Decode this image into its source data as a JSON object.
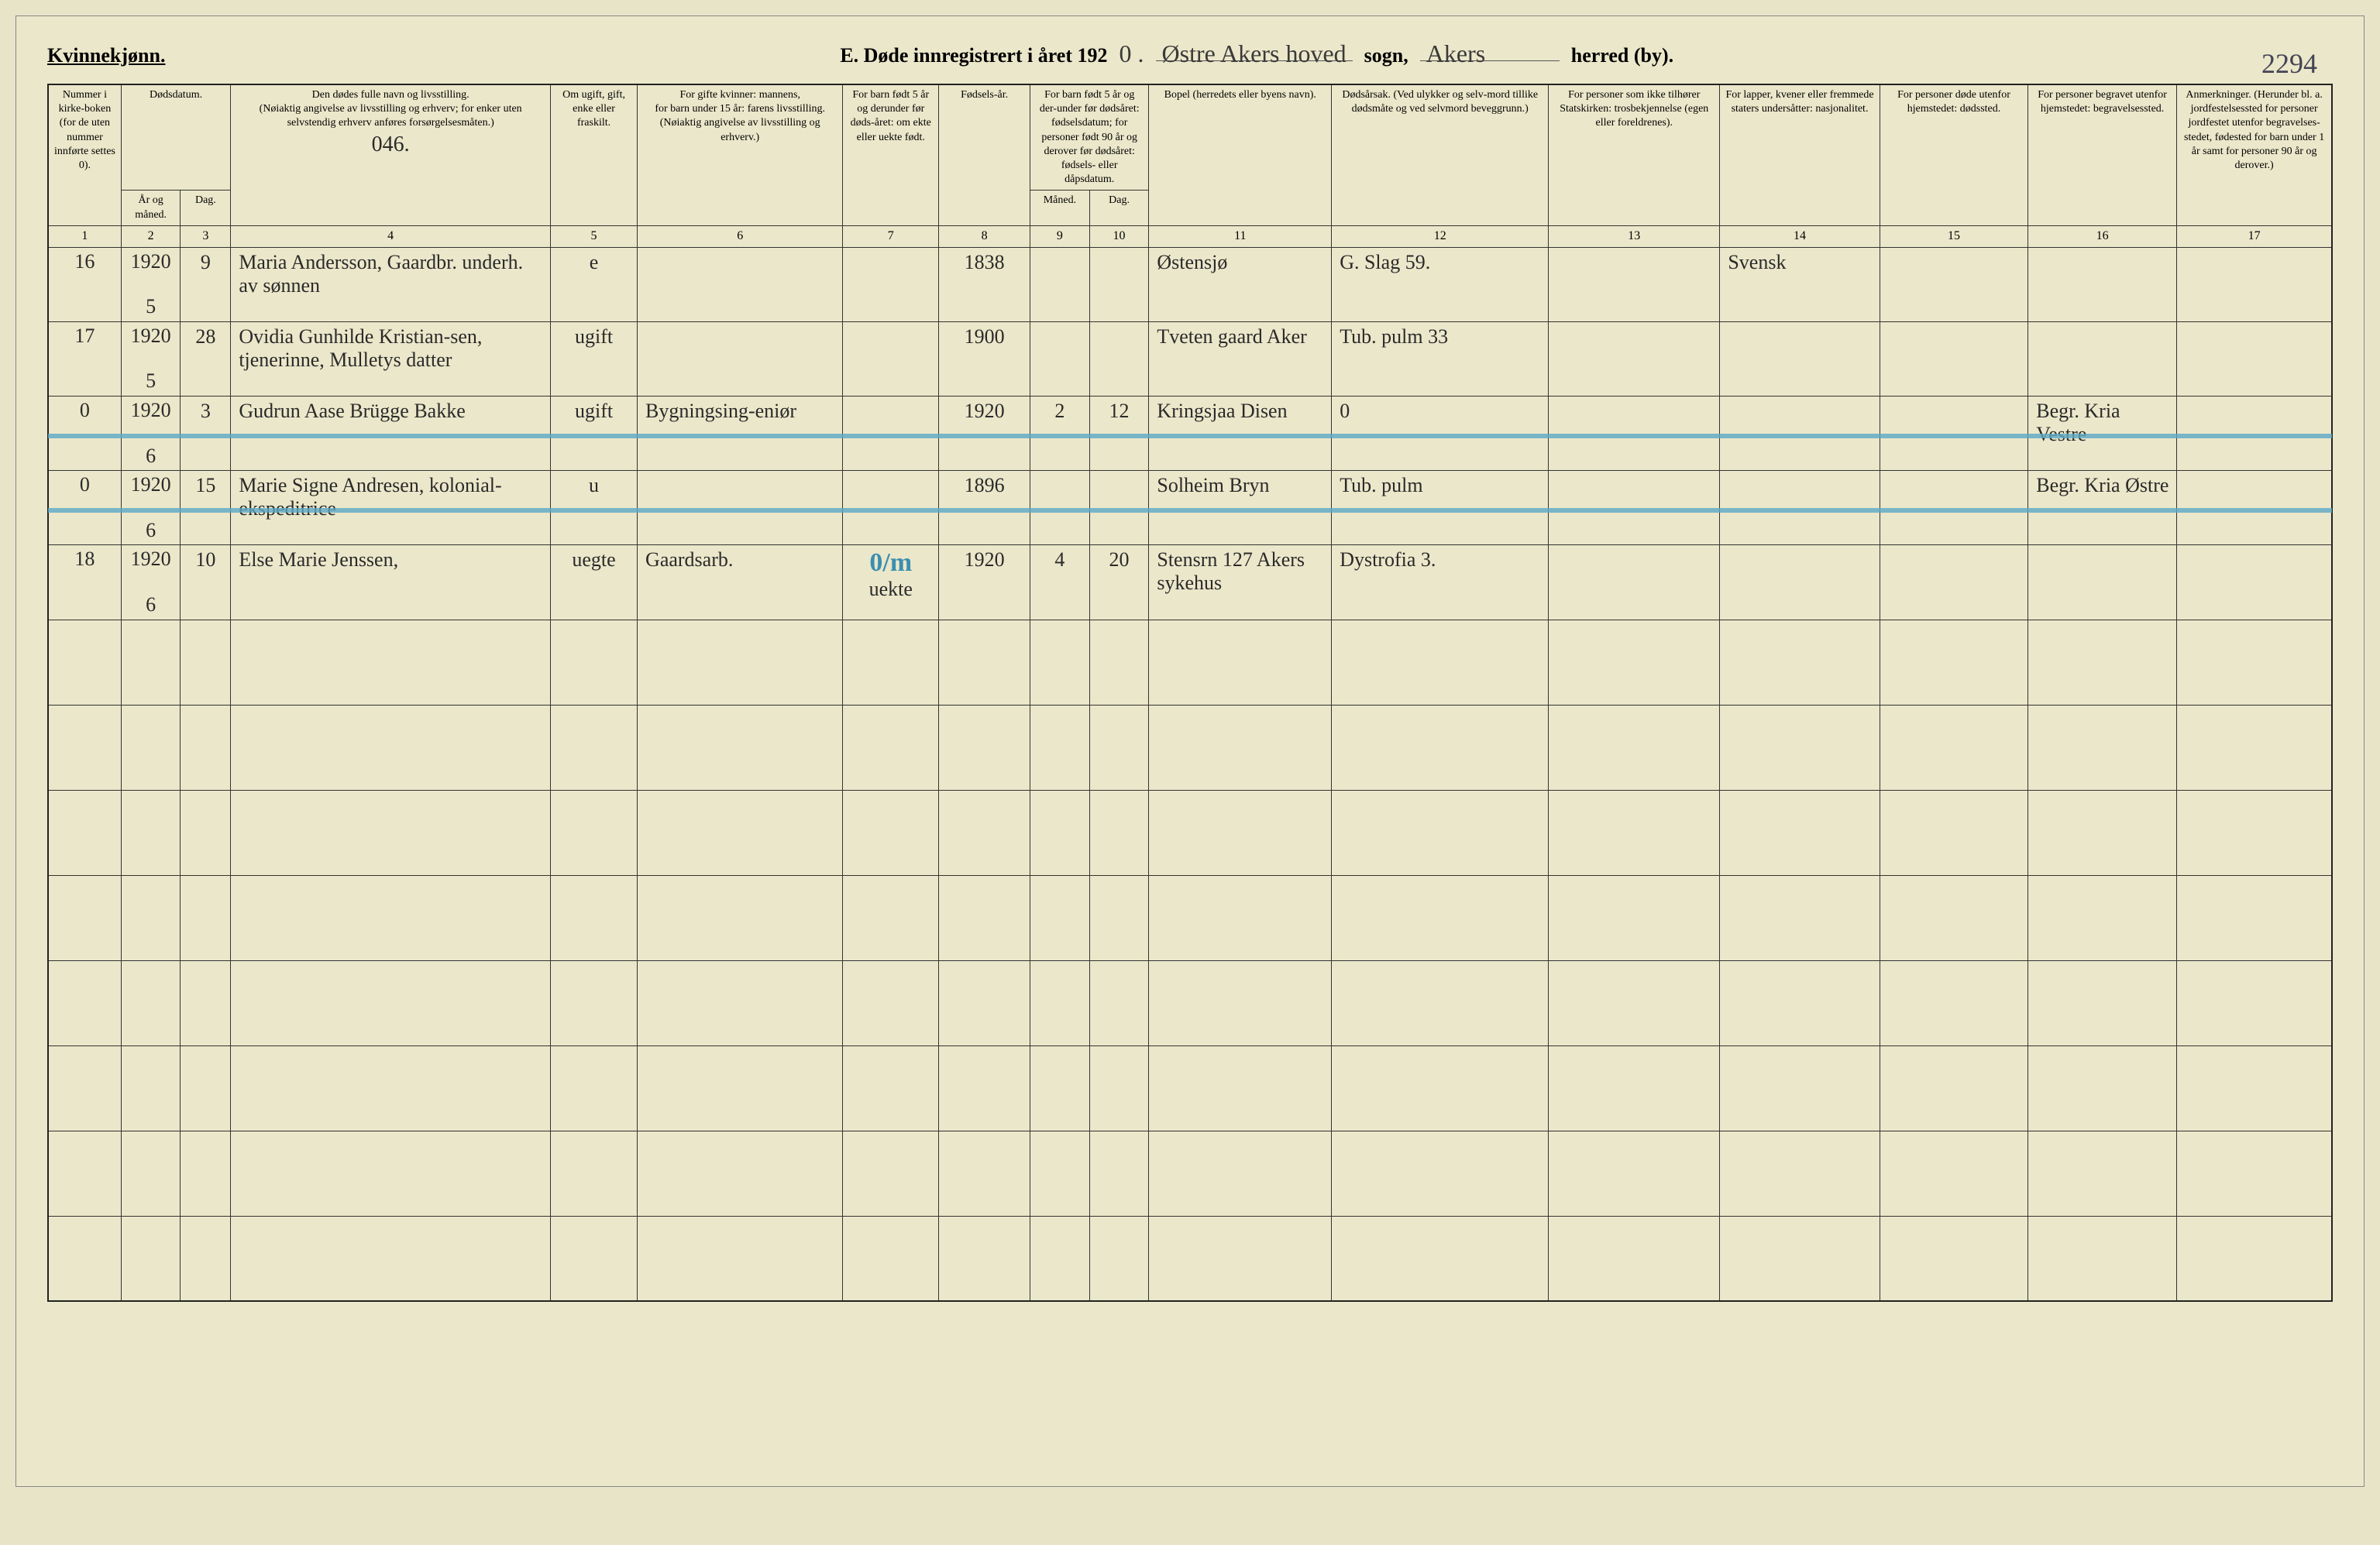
{
  "header": {
    "gender_label": "Kvinnekjønn.",
    "title_prefix": "E.  Døde innregistrert i året 192",
    "year_suffix": "0 .",
    "parish_handwriting": "Østre   Akers   hoved",
    "sogn_label": "sogn,",
    "herred_handwriting": "Akers",
    "herred_label": "herred (by).",
    "page_number": "2294"
  },
  "columns": {
    "c1": "Nummer i kirke-boken (for de uten nummer innførte settes 0).",
    "c2_3": "Dødsdatum.",
    "c2": "År og måned.",
    "c3": "Dag.",
    "c4_top": "Den dødes fulle navn og livsstilling.",
    "c4_mid": "(Nøiaktig angivelse av livsstilling og erhverv; for enker uten selvstendig erhverv anføres forsørgelsesmåten.)",
    "c4_hand": "046.",
    "c5": "Om ugift, gift, enke eller fraskilt.",
    "c6_top": "For gifte kvinner: mannens,",
    "c6_mid": "for barn under 15 år: farens livsstilling.",
    "c6_bot": "(Nøiaktig angivelse av livsstilling og erhverv.)",
    "c7": "For barn født 5 år og derunder før døds-året: om ekte eller uekte født.",
    "c8": "Fødsels-år.",
    "c9_10_top": "For barn født 5 år og der-under før dødsåret: fødselsdatum; for personer født 90 år og derover før dødsåret: fødsels- eller dåpsdatum.",
    "c9": "Måned.",
    "c10": "Dag.",
    "c11": "Bopel (herredets eller byens navn).",
    "c12": "Dødsårsak. (Ved ulykker og selv-mord tillike dødsmåte og ved selvmord beveggrunn.)",
    "c13": "For personer som ikke tilhører Statskirken: trosbekjennelse (egen eller foreldrenes).",
    "c14": "For lapper, kvener eller fremmede staters undersåtter: nasjonalitet.",
    "c15": "For personer døde utenfor hjemstedet: dødssted.",
    "c16": "For personer begravet utenfor hjemstedet: begravelsessted.",
    "c17": "Anmerkninger. (Herunder bl. a. jordfestelsessted for personer jordfestet utenfor begravelses-stedet, fødested for barn under 1 år samt for personer 90 år og derover.)"
  },
  "col_numbers": [
    "1",
    "2",
    "3",
    "4",
    "5",
    "6",
    "7",
    "8",
    "9",
    "10",
    "11",
    "12",
    "13",
    "14",
    "15",
    "16",
    "17"
  ],
  "rows": [
    {
      "num": "16",
      "year": "1920",
      "month": "5",
      "day": "9",
      "name": "Maria Andersson, Gaardbr. underh. av sønnen",
      "status": "e",
      "spouse": "",
      "ekte": "",
      "birth_year": "1838",
      "b_month": "",
      "b_day": "",
      "residence": "Østensjø",
      "cause": "G. Slag 59.",
      "religion": "",
      "nationality": "Svensk",
      "death_place": "",
      "burial_place": "",
      "remarks": "",
      "struck": false
    },
    {
      "num": "17",
      "year": "1920",
      "month": "5",
      "day": "28",
      "name": "Ovidia Gunhilde Kristian-sen, tjenerinne, Mulletys datter",
      "status": "ugift",
      "spouse": "",
      "ekte": "",
      "birth_year": "1900",
      "b_month": "",
      "b_day": "",
      "residence": "Tveten gaard Aker",
      "cause": "Tub. pulm 33",
      "religion": "",
      "nationality": "",
      "death_place": "",
      "burial_place": "",
      "remarks": "",
      "struck": false
    },
    {
      "num": "0",
      "year": "1920",
      "month": "6",
      "day": "3",
      "name": "Gudrun Aase Brügge Bakke",
      "status": "ugift",
      "spouse": "Bygningsing-eniør",
      "ekte": "",
      "birth_year": "1920",
      "b_month": "2",
      "b_day": "12",
      "residence": "Kringsjaa Disen",
      "cause": "0",
      "religion": "",
      "nationality": "",
      "death_place": "",
      "burial_place": "Begr. Kria Vestre",
      "remarks": "",
      "struck": true
    },
    {
      "num": "0",
      "year": "1920",
      "month": "6",
      "day": "15",
      "name": "Marie Signe Andresen, kolonial-ekspeditrice",
      "status": "u",
      "spouse": "",
      "ekte": "",
      "birth_year": "1896",
      "b_month": "",
      "b_day": "",
      "residence": "Solheim Bryn",
      "cause": "Tub. pulm",
      "religion": "",
      "nationality": "",
      "death_place": "",
      "burial_place": "Begr. Kria Østre",
      "remarks": "",
      "struck": true
    },
    {
      "num": "18",
      "year": "1920",
      "month": "6",
      "day": "10",
      "name": "Else Marie Jenssen,",
      "status": "uegte",
      "spouse": "Gaardsarb.",
      "ekte": "uekte",
      "birth_year": "1920",
      "b_month": "4",
      "b_day": "20",
      "residence": "Stensrn 127 Akers sykehus",
      "cause": "Dystrofia 3.",
      "religion": "",
      "nationality": "",
      "death_place": "",
      "burial_place": "",
      "remarks": "",
      "struck": false,
      "blue_mark": "0/m"
    }
  ],
  "empty_row_count": 8,
  "colors": {
    "paper": "#ebe7ca",
    "ink": "#2a2a2a",
    "border": "#333333",
    "blue_strike": "#5da9c5",
    "blue_pencil": "#3b8fb0"
  },
  "column_widths_pct": [
    3.2,
    2.6,
    2.2,
    14,
    3.8,
    9,
    4.2,
    4,
    2.6,
    2.6,
    8,
    9.5,
    7.5,
    7,
    6.5,
    6.5,
    6.8
  ]
}
